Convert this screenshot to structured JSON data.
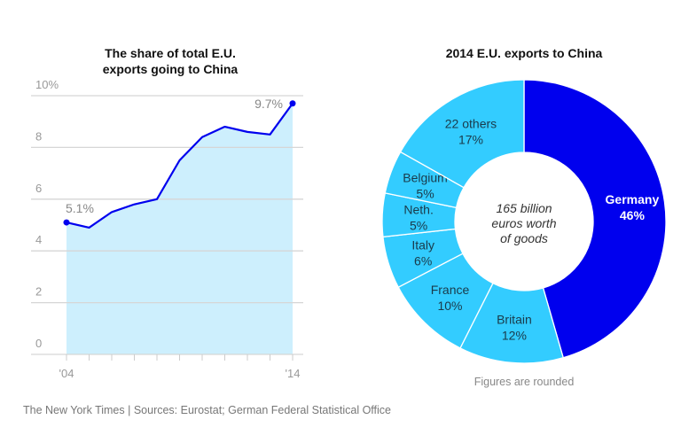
{
  "chart_data": [
    {
      "type": "area",
      "title": "The share of total E.U. exports going to China",
      "x": [
        2004,
        2005,
        2006,
        2007,
        2008,
        2009,
        2010,
        2011,
        2012,
        2013,
        2014
      ],
      "values": [
        5.1,
        4.9,
        5.5,
        5.8,
        6.0,
        7.5,
        8.4,
        8.8,
        8.6,
        8.5,
        9.7
      ],
      "ylim": [
        0,
        10
      ],
      "yticks": [
        0,
        2,
        4,
        6,
        8,
        10
      ],
      "ytick_labels": [
        "0",
        "2",
        "4",
        "6",
        "8",
        "10%"
      ],
      "xtick_labels": [
        "'04",
        "'14"
      ],
      "annotations": [
        "5.1%",
        "9.7%"
      ],
      "grid": true,
      "colors": {
        "line": "#0000ee",
        "fill": "#cdeffd"
      }
    },
    {
      "type": "pie",
      "title": "2014 E.U. exports to China",
      "center_text": [
        "165 billion",
        "euros worth",
        "of goods"
      ],
      "slices": [
        {
          "label": "Germany",
          "value": 46,
          "text": "46%",
          "color": "#0000ee"
        },
        {
          "label": "Britain",
          "value": 12,
          "text": "12%",
          "color": "#33ccff"
        },
        {
          "label": "France",
          "value": 10,
          "text": "10%",
          "color": "#33ccff"
        },
        {
          "label": "Italy",
          "value": 6,
          "text": "6%",
          "color": "#33ccff"
        },
        {
          "label": "Neth.",
          "value": 5,
          "text": "5%",
          "color": "#33ccff"
        },
        {
          "label": "Belgium",
          "value": 5,
          "text": "5%",
          "color": "#33ccff"
        },
        {
          "label": "22 others",
          "value": 17,
          "text": "17%",
          "color": "#33ccff"
        }
      ],
      "note": "Figures are rounded"
    }
  ],
  "footer": "The New York Times | Sources: Eurostat; German Federal Statistical Office"
}
